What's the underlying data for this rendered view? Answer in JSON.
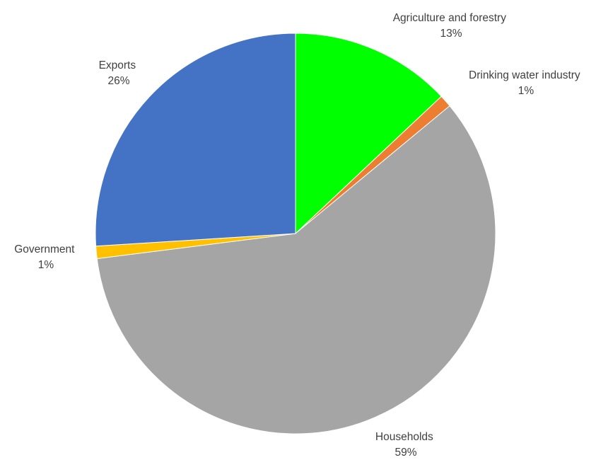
{
  "chart_data": {
    "type": "pie",
    "title": "",
    "legend": "none",
    "slices": [
      {
        "label": "Agriculture and forestry",
        "percent_label": "13%",
        "value": 13,
        "color": "#00ff00"
      },
      {
        "label": "Drinking water industry",
        "percent_label": "1%",
        "value": 1,
        "color": "#ed7d31"
      },
      {
        "label": "Households",
        "percent_label": "59%",
        "value": 59,
        "color": "#a5a5a5"
      },
      {
        "label": "Government",
        "percent_label": "1%",
        "value": 1,
        "color": "#ffc000"
      },
      {
        "label": "Exports",
        "percent_label": "26%",
        "value": 26,
        "color": "#4472c4"
      }
    ]
  }
}
